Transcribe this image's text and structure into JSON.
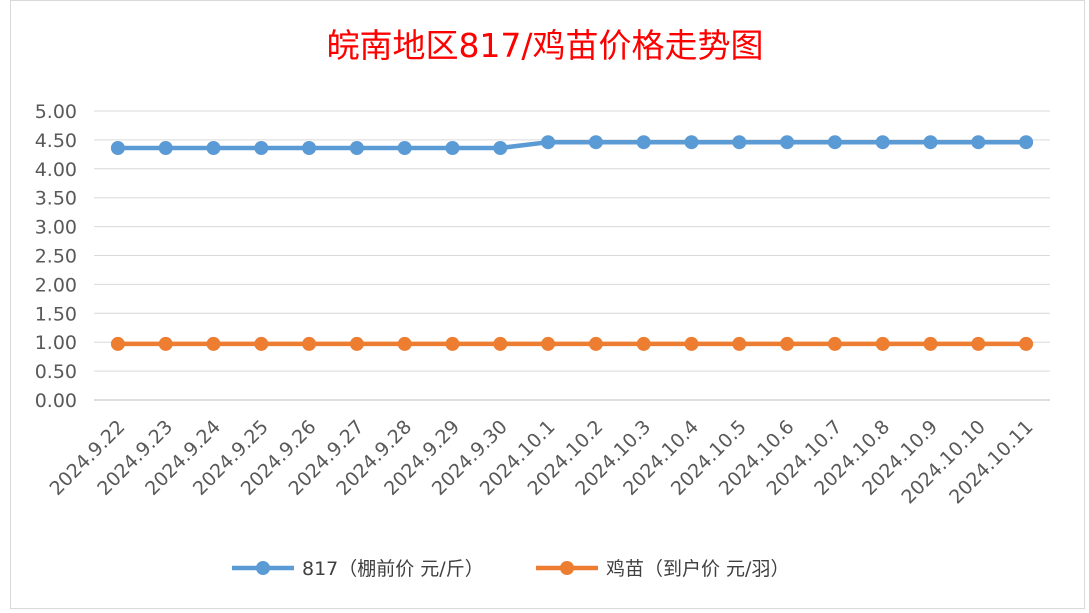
{
  "chart_data": {
    "type": "line",
    "title": "皖南地区817/鸡苗价格走势图",
    "xlabel": "",
    "ylabel": "",
    "categories": [
      "2024.9.22",
      "2024.9.23",
      "2024.9.24",
      "2024.9.25",
      "2024.9.26",
      "2024.9.27",
      "2024.9.28",
      "2024.9.29",
      "2024.9.30",
      "2024.10.1",
      "2024.10.2",
      "2024.10.3",
      "2024.10.4",
      "2024.10.5",
      "2024.10.6",
      "2024.10.7",
      "2024.10.8",
      "2024.10.9",
      "2024.10.10",
      "2024.10.11"
    ],
    "ylim": [
      0,
      5
    ],
    "ytick_labels": [
      "0.00",
      "0.50",
      "1.00",
      "1.50",
      "2.00",
      "2.50",
      "3.00",
      "3.50",
      "4.00",
      "4.50",
      "5.00"
    ],
    "grid": "horizontal",
    "legend_position": "bottom",
    "series": [
      {
        "name": "817（棚前价 元/斤）",
        "color": "#5b9bd5",
        "values": [
          4.36,
          4.36,
          4.36,
          4.36,
          4.36,
          4.36,
          4.36,
          4.36,
          4.36,
          4.46,
          4.46,
          4.46,
          4.46,
          4.46,
          4.46,
          4.46,
          4.46,
          4.46,
          4.46,
          4.46
        ]
      },
      {
        "name": "鸡苗（到户价 元/羽）",
        "color": "#ed7d31",
        "values": [
          0.97,
          0.97,
          0.97,
          0.97,
          0.97,
          0.97,
          0.97,
          0.97,
          0.97,
          0.97,
          0.97,
          0.97,
          0.97,
          0.97,
          0.97,
          0.97,
          0.97,
          0.97,
          0.97,
          0.97
        ]
      }
    ],
    "title_color": "#ff0000"
  }
}
